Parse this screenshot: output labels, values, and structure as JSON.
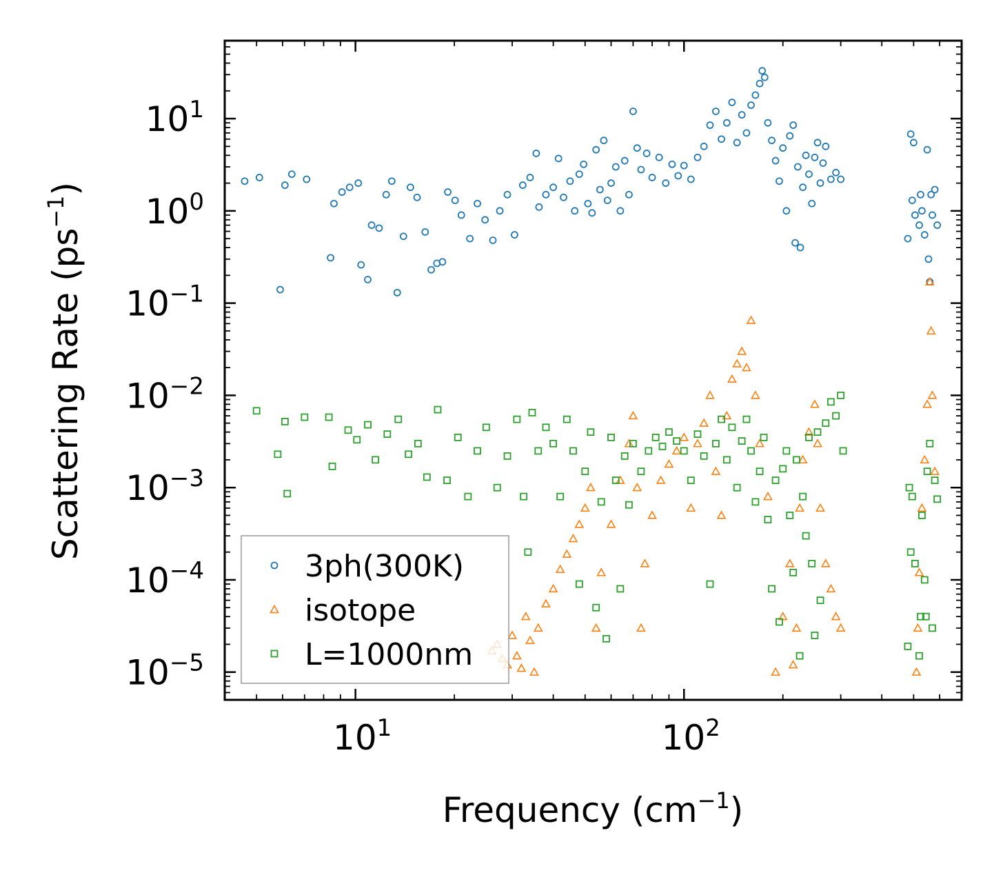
{
  "chart_data": {
    "type": "scatter",
    "title": "",
    "xlabel": "Frequency (cm",
    "xlabel_sup": "−1",
    "xlabel_close": ")",
    "ylabel": "Scattering Rate (ps",
    "ylabel_sup": "−1",
    "ylabel_close": ")",
    "xscale": "log",
    "yscale": "log",
    "xlim": [
      4.0,
      700.0
    ],
    "ylim": [
      5e-06,
      70.0
    ],
    "x_ticks": [
      {
        "value": 10,
        "base": "10",
        "exp": "1"
      },
      {
        "value": 100,
        "base": "10",
        "exp": "2"
      }
    ],
    "y_ticks": [
      {
        "value": 1e-05,
        "base": "10",
        "exp": "−5"
      },
      {
        "value": 0.0001,
        "base": "10",
        "exp": "−4"
      },
      {
        "value": 0.001,
        "base": "10",
        "exp": "−3"
      },
      {
        "value": 0.01,
        "base": "10",
        "exp": "−2"
      },
      {
        "value": 0.1,
        "base": "10",
        "exp": "−1"
      },
      {
        "value": 1,
        "base": "10",
        "exp": "0"
      },
      {
        "value": 10,
        "base": "10",
        "exp": "1"
      }
    ],
    "legend_position": "lower-left",
    "series": [
      {
        "name": "3ph(300K)",
        "marker": "circle",
        "color": "#1f77b4",
        "points": [
          [
            4.6,
            2.1
          ],
          [
            5.1,
            2.3
          ],
          [
            5.9,
            0.14
          ],
          [
            6.1,
            1.9
          ],
          [
            6.4,
            2.5
          ],
          [
            7.1,
            2.2
          ],
          [
            8.4,
            0.31
          ],
          [
            8.6,
            1.2
          ],
          [
            9.1,
            1.6
          ],
          [
            9.6,
            1.8
          ],
          [
            10.2,
            2.0
          ],
          [
            10.4,
            0.26
          ],
          [
            10.9,
            0.18
          ],
          [
            11.2,
            0.7
          ],
          [
            11.8,
            0.65
          ],
          [
            12.4,
            1.5
          ],
          [
            12.9,
            2.1
          ],
          [
            13.4,
            0.13
          ],
          [
            14.0,
            0.53
          ],
          [
            14.7,
            1.8
          ],
          [
            15.4,
            1.4
          ],
          [
            16.3,
            0.59
          ],
          [
            17.0,
            0.23
          ],
          [
            17.7,
            0.27
          ],
          [
            18.4,
            0.28
          ],
          [
            19.1,
            1.6
          ],
          [
            20.1,
            1.3
          ],
          [
            21.0,
            0.9
          ],
          [
            22.3,
            0.5
          ],
          [
            23.5,
            1.2
          ],
          [
            24.8,
            0.8
          ],
          [
            26.2,
            0.48
          ],
          [
            27.5,
            1.0
          ],
          [
            29.0,
            1.5
          ],
          [
            30.5,
            0.55
          ],
          [
            32.3,
            1.9
          ],
          [
            34.0,
            2.3
          ],
          [
            35.5,
            4.2
          ],
          [
            36.2,
            1.1
          ],
          [
            38.0,
            1.5
          ],
          [
            40.0,
            1.8
          ],
          [
            41.5,
            3.7
          ],
          [
            43.0,
            1.4
          ],
          [
            45.0,
            2.1
          ],
          [
            46.5,
            1.0
          ],
          [
            48.0,
            2.5
          ],
          [
            49.5,
            3.2
          ],
          [
            51.0,
            1.2
          ],
          [
            52.5,
            0.95
          ],
          [
            54.0,
            4.6
          ],
          [
            55.5,
            1.7
          ],
          [
            57.0,
            5.8
          ],
          [
            58.5,
            1.3
          ],
          [
            60.0,
            2.0
          ],
          [
            62.0,
            3.0
          ],
          [
            64.0,
            1.0
          ],
          [
            66.0,
            3.5
          ],
          [
            68.0,
            1.5
          ],
          [
            70.0,
            12.0
          ],
          [
            72.0,
            4.8
          ],
          [
            74.0,
            2.8
          ],
          [
            77.0,
            4.2
          ],
          [
            80.0,
            2.3
          ],
          [
            84.0,
            3.8
          ],
          [
            88.0,
            2.0
          ],
          [
            92.0,
            3.2
          ],
          [
            96.0,
            2.4
          ],
          [
            100.0,
            3.1
          ],
          [
            105.0,
            2.2
          ],
          [
            110.0,
            3.8
          ],
          [
            115.0,
            5.0
          ],
          [
            120.0,
            8.5
          ],
          [
            125.0,
            12.0
          ],
          [
            130.0,
            6.0
          ],
          [
            135.0,
            9.0
          ],
          [
            140.0,
            15.0
          ],
          [
            145.0,
            5.5
          ],
          [
            150.0,
            11.0
          ],
          [
            155.0,
            7.0
          ],
          [
            160.0,
            14.0
          ],
          [
            165.0,
            18.0
          ],
          [
            170.0,
            24.0
          ],
          [
            173.0,
            33.0
          ],
          [
            176.0,
            28.0
          ],
          [
            180.0,
            9.0
          ],
          [
            185.0,
            5.8
          ],
          [
            190.0,
            3.5
          ],
          [
            195.0,
            2.1
          ],
          [
            200.0,
            4.8
          ],
          [
            205.0,
            1.0
          ],
          [
            210.0,
            6.5
          ],
          [
            215.0,
            8.5
          ],
          [
            218.0,
            0.45
          ],
          [
            222.0,
            3.0
          ],
          [
            226.0,
            0.4
          ],
          [
            230.0,
            1.8
          ],
          [
            235.0,
            4.0
          ],
          [
            240.0,
            2.5
          ],
          [
            245.0,
            1.2
          ],
          [
            250.0,
            3.8
          ],
          [
            255.0,
            5.5
          ],
          [
            260.0,
            2.0
          ],
          [
            265.0,
            3.3
          ],
          [
            270.0,
            5.0
          ],
          [
            280.0,
            2.2
          ],
          [
            290.0,
            2.6
          ],
          [
            300.0,
            2.2
          ],
          [
            480.0,
            0.5
          ],
          [
            490.0,
            6.8
          ],
          [
            495.0,
            1.3
          ],
          [
            500.0,
            5.5
          ],
          [
            505.0,
            0.9
          ],
          [
            520.0,
            0.7
          ],
          [
            525.0,
            1.5
          ],
          [
            530.0,
            1.0
          ],
          [
            540.0,
            0.55
          ],
          [
            550.0,
            4.6
          ],
          [
            555.0,
            0.3
          ],
          [
            560.0,
            0.17
          ],
          [
            565.0,
            1.5
          ],
          [
            570.0,
            0.9
          ],
          [
            580.0,
            1.7
          ],
          [
            590.0,
            0.7
          ]
        ]
      },
      {
        "name": "isotope",
        "marker": "triangle",
        "color": "#ff7f0e",
        "points": [
          [
            26.0,
            1.7e-05
          ],
          [
            27.0,
            2e-05
          ],
          [
            28.0,
            1.4e-05
          ],
          [
            29.0,
            1.2e-05
          ],
          [
            30.0,
            2.5e-05
          ],
          [
            31.0,
            1.5e-05
          ],
          [
            32.0,
            1.1e-05
          ],
          [
            33.0,
            4e-05
          ],
          [
            34.0,
            2.2e-05
          ],
          [
            35.0,
            1e-05
          ],
          [
            36.0,
            3e-05
          ],
          [
            38.0,
            5.5e-05
          ],
          [
            40.0,
            8e-05
          ],
          [
            42.0,
            0.00013
          ],
          [
            44.0,
            0.00019
          ],
          [
            46.0,
            0.00028
          ],
          [
            48.0,
            0.0004
          ],
          [
            50.0,
            0.0006
          ],
          [
            52.0,
            0.001
          ],
          [
            54.0,
            3e-05
          ],
          [
            56.0,
            0.00012
          ],
          [
            60.0,
            0.0004
          ],
          [
            64.0,
            0.0012
          ],
          [
            68.0,
            0.003
          ],
          [
            70.0,
            0.006
          ],
          [
            72.0,
            0.001
          ],
          [
            74.0,
            3e-05
          ],
          [
            76.0,
            0.00015
          ],
          [
            80.0,
            0.0005
          ],
          [
            85.0,
            0.0012
          ],
          [
            90.0,
            0.0018
          ],
          [
            95.0,
            0.0025
          ],
          [
            100.0,
            0.0035
          ],
          [
            105.0,
            0.0006
          ],
          [
            110.0,
            0.003
          ],
          [
            115.0,
            0.005
          ],
          [
            120.0,
            0.01
          ],
          [
            125.0,
            0.0015
          ],
          [
            130.0,
            0.0005
          ],
          [
            135.0,
            0.006
          ],
          [
            140.0,
            0.015
          ],
          [
            145.0,
            0.022
          ],
          [
            150.0,
            0.03
          ],
          [
            155.0,
            0.02
          ],
          [
            160.0,
            0.065
          ],
          [
            165.0,
            0.01
          ],
          [
            170.0,
            0.003
          ],
          [
            180.0,
            0.0008
          ],
          [
            190.0,
            1e-05
          ],
          [
            200.0,
            4e-05
          ],
          [
            210.0,
            0.00015
          ],
          [
            215.0,
            1.2e-05
          ],
          [
            220.0,
            3e-05
          ],
          [
            225.0,
            0.0006
          ],
          [
            230.0,
            0.002
          ],
          [
            240.0,
            0.004
          ],
          [
            250.0,
            0.008
          ],
          [
            255.0,
            0.003
          ],
          [
            260.0,
            0.0006
          ],
          [
            270.0,
            0.00015
          ],
          [
            280.0,
            8e-05
          ],
          [
            290.0,
            4e-05
          ],
          [
            300.0,
            3e-05
          ],
          [
            510.0,
            1e-05
          ],
          [
            515.0,
            3e-05
          ],
          [
            520.0,
            0.00012
          ],
          [
            530.0,
            0.0006
          ],
          [
            540.0,
            0.002
          ],
          [
            550.0,
            0.008
          ],
          [
            560.0,
            0.17
          ],
          [
            565.0,
            0.05
          ],
          [
            570.0,
            0.01
          ],
          [
            580.0,
            0.0015
          ]
        ]
      },
      {
        "name": "L=1000nm",
        "marker": "square",
        "color": "#2ca02c",
        "points": [
          [
            5.0,
            0.0068
          ],
          [
            5.8,
            0.0023
          ],
          [
            6.1,
            0.0052
          ],
          [
            6.2,
            0.00086
          ],
          [
            7.0,
            0.0058
          ],
          [
            8.3,
            0.0058
          ],
          [
            8.5,
            0.0017
          ],
          [
            9.5,
            0.0042
          ],
          [
            10.1,
            0.0033
          ],
          [
            10.9,
            0.0048
          ],
          [
            11.5,
            0.002
          ],
          [
            12.5,
            0.0038
          ],
          [
            13.5,
            0.0055
          ],
          [
            14.5,
            0.0023
          ],
          [
            15.5,
            0.003
          ],
          [
            16.5,
            0.0013
          ],
          [
            17.8,
            0.007
          ],
          [
            19.0,
            0.0012
          ],
          [
            20.5,
            0.0035
          ],
          [
            22.0,
            0.0008
          ],
          [
            23.5,
            0.0025
          ],
          [
            25.0,
            0.0045
          ],
          [
            27.0,
            0.001
          ],
          [
            29.0,
            0.0022
          ],
          [
            31.0,
            0.0055
          ],
          [
            32.5,
            0.0008
          ],
          [
            33.5,
            0.0002
          ],
          [
            34.5,
            0.0065
          ],
          [
            36.0,
            0.0025
          ],
          [
            38.0,
            0.0045
          ],
          [
            40.0,
            0.003
          ],
          [
            42.0,
            0.0008
          ],
          [
            44.0,
            0.0055
          ],
          [
            46.0,
            0.0025
          ],
          [
            48.0,
            9e-05
          ],
          [
            50.0,
            0.0015
          ],
          [
            52.0,
            0.004
          ],
          [
            54.0,
            5e-05
          ],
          [
            56.0,
            0.0007
          ],
          [
            58.0,
            2.3e-05
          ],
          [
            60.0,
            0.0035
          ],
          [
            62.0,
            0.0012
          ],
          [
            64.0,
            8e-05
          ],
          [
            66.0,
            0.0022
          ],
          [
            68.0,
            0.00065
          ],
          [
            70.0,
            0.003
          ],
          [
            74.0,
            0.0015
          ],
          [
            78.0,
            0.0025
          ],
          [
            82.0,
            0.0035
          ],
          [
            86.0,
            0.0028
          ],
          [
            90.0,
            0.004
          ],
          [
            95.0,
            0.0032
          ],
          [
            100.0,
            0.0025
          ],
          [
            105.0,
            0.0012
          ],
          [
            110.0,
            0.0038
          ],
          [
            115.0,
            0.0022
          ],
          [
            120.0,
            9e-05
          ],
          [
            125.0,
            0.003
          ],
          [
            130.0,
            0.0055
          ],
          [
            135.0,
            0.002
          ],
          [
            140.0,
            0.0045
          ],
          [
            145.0,
            0.001
          ],
          [
            150.0,
            0.0032
          ],
          [
            155.0,
            0.0055
          ],
          [
            160.0,
            0.0025
          ],
          [
            165.0,
            0.0007
          ],
          [
            170.0,
            0.0015
          ],
          [
            175.0,
            0.0035
          ],
          [
            180.0,
            0.00045
          ],
          [
            185.0,
            8e-05
          ],
          [
            190.0,
            0.0012
          ],
          [
            195.0,
            3.5e-05
          ],
          [
            200.0,
            0.0016
          ],
          [
            205.0,
            0.0025
          ],
          [
            210.0,
            0.0005
          ],
          [
            215.0,
            0.00012
          ],
          [
            220.0,
            0.002
          ],
          [
            225.0,
            1.5e-05
          ],
          [
            230.0,
            0.0008
          ],
          [
            235.0,
            0.0003
          ],
          [
            240.0,
            0.0035
          ],
          [
            245.0,
            0.00015
          ],
          [
            250.0,
            2.5e-05
          ],
          [
            255.0,
            0.004
          ],
          [
            260.0,
            6e-05
          ],
          [
            270.0,
            0.005
          ],
          [
            280.0,
            0.0085
          ],
          [
            290.0,
            0.006
          ],
          [
            300.0,
            0.01
          ],
          [
            305.0,
            0.0025
          ],
          [
            480.0,
            1.9e-05
          ],
          [
            485.0,
            0.001
          ],
          [
            490.0,
            0.0002
          ],
          [
            495.0,
            0.0008
          ],
          [
            505.0,
            0.00015
          ],
          [
            520.0,
            1.5e-05
          ],
          [
            525.0,
            4e-05
          ],
          [
            530.0,
            0.0005
          ],
          [
            540.0,
            0.0001
          ],
          [
            545.0,
            4e-05
          ],
          [
            550.0,
            0.0015
          ],
          [
            560.0,
            0.003
          ],
          [
            570.0,
            3e-05
          ],
          [
            580.0,
            0.0012
          ],
          [
            590.0,
            0.00075
          ]
        ]
      }
    ]
  }
}
